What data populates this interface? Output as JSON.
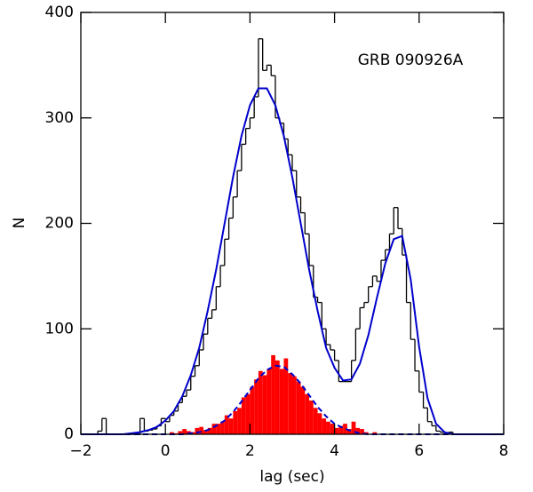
{
  "chart_data": {
    "type": "histogram",
    "annotation": "GRB 090926A",
    "xlabel": "lag (sec)",
    "ylabel": "N",
    "xlim": [
      -2,
      8
    ],
    "ylim": [
      0,
      400
    ],
    "xticks": [
      {
        "value": -2,
        "label": "−2"
      },
      0,
      2,
      4,
      6,
      8
    ],
    "yticks": [
      0,
      100,
      200,
      300,
      400
    ],
    "bins": [
      -2,
      -1.9,
      -1.8,
      -1.7,
      -1.6,
      -1.5,
      -1.4,
      -1.3,
      -1.2,
      -1.1,
      -1,
      -0.9,
      -0.8,
      -0.7,
      -0.6,
      -0.5,
      -0.4,
      -0.3,
      -0.2,
      -0.1,
      0,
      0.1,
      0.2,
      0.3,
      0.4,
      0.5,
      0.6,
      0.7,
      0.8,
      0.9,
      1,
      1.1,
      1.2,
      1.3,
      1.4,
      1.5,
      1.6,
      1.7,
      1.8,
      1.9,
      2,
      2.1,
      2.2,
      2.3,
      2.4,
      2.5,
      2.6,
      2.7,
      2.8,
      2.9,
      3,
      3.1,
      3.2,
      3.3,
      3.4,
      3.5,
      3.6,
      3.7,
      3.8,
      3.9,
      4,
      4.1,
      4.2,
      4.3,
      4.4,
      4.5,
      4.6,
      4.7,
      4.8,
      4.9,
      5,
      5.1,
      5.2,
      5.3,
      5.4,
      5.5,
      5.6,
      5.7,
      5.8,
      5.9,
      6,
      6.1,
      6.2,
      6.3,
      6.4,
      6.5,
      6.6,
      6.7,
      6.8,
      6.9,
      7,
      7.1,
      7.2,
      7.3,
      7.4,
      7.5,
      7.6,
      7.7,
      7.8,
      7.9,
      8
    ],
    "series": [
      {
        "color": "#ff0000",
        "style": "filled",
        "values": [
          0,
          0,
          0,
          0,
          0,
          0,
          0,
          0,
          0,
          0,
          0,
          0,
          0,
          0,
          0,
          0,
          0,
          0,
          0,
          0,
          0,
          2,
          1,
          3,
          5,
          3,
          2,
          6,
          7,
          4,
          6,
          10,
          10,
          12,
          18,
          15,
          22,
          25,
          35,
          38,
          45,
          52,
          60,
          56,
          62,
          75,
          70,
          62,
          72,
          58,
          55,
          50,
          45,
          38,
          32,
          25,
          20,
          15,
          12,
          10,
          6,
          8,
          10,
          5,
          12,
          6,
          5,
          2,
          0,
          2,
          0,
          0,
          0,
          0,
          0,
          0,
          0,
          0,
          0,
          0,
          0,
          0,
          0,
          0,
          0,
          0,
          0,
          0,
          0,
          0,
          0,
          0,
          0,
          0,
          0,
          0,
          0,
          0,
          0,
          0
        ]
      },
      {
        "color": "#000000",
        "style": "step",
        "values": [
          0,
          0,
          0,
          0,
          3,
          15,
          0,
          0,
          0,
          0,
          0,
          0,
          0,
          0,
          15,
          3,
          4,
          5,
          8,
          15,
          12,
          18,
          22,
          30,
          36,
          42,
          55,
          65,
          80,
          95,
          110,
          118,
          140,
          160,
          185,
          205,
          225,
          250,
          275,
          290,
          300,
          320,
          375,
          345,
          350,
          340,
          300,
          295,
          280,
          265,
          250,
          225,
          210,
          190,
          160,
          130,
          125,
          100,
          85,
          80,
          70,
          50,
          50,
          50,
          70,
          100,
          120,
          125,
          140,
          150,
          145,
          165,
          175,
          190,
          215,
          195,
          170,
          125,
          90,
          60,
          40,
          25,
          12,
          8,
          3,
          2,
          0,
          2,
          0,
          0,
          0,
          0,
          0,
          0,
          0,
          0,
          0,
          0,
          0,
          0
        ]
      }
    ],
    "curve_x": [
      -2,
      -1.8,
      -1.6,
      -1.4,
      -1.2,
      -1,
      -0.8,
      -0.6,
      -0.4,
      -0.2,
      0,
      0.2,
      0.4,
      0.6,
      0.8,
      1,
      1.2,
      1.4,
      1.6,
      1.8,
      2,
      2.2,
      2.4,
      2.6,
      2.8,
      3,
      3.2,
      3.4,
      3.6,
      3.8,
      4,
      4.2,
      4.4,
      4.6,
      4.8,
      5,
      5.2,
      5.4,
      5.6,
      5.8,
      6,
      6.2,
      6.4,
      6.6,
      6.8,
      7,
      7.2,
      7.4,
      7.6,
      7.8,
      8
    ],
    "curves": [
      {
        "color": "#0000cc",
        "dashed": false,
        "values": [
          0,
          0,
          0,
          0,
          0,
          0,
          1,
          2,
          4,
          7,
          13,
          22,
          36,
          56,
          82,
          117,
          156,
          200,
          244,
          283,
          312,
          328,
          328,
          312,
          283,
          244,
          200,
          156,
          117,
          82,
          63,
          51,
          52,
          67,
          94,
          129,
          162,
          185,
          188,
          147,
          83,
          34,
          10,
          2,
          0,
          0,
          0,
          0,
          0,
          0,
          0
        ]
      },
      {
        "color": "#0000cc",
        "dashed": true,
        "values": [
          0,
          0,
          0,
          0,
          0,
          0,
          0,
          0,
          0,
          0,
          0,
          0,
          0,
          1,
          2,
          4,
          8,
          13,
          21,
          31,
          42,
          53,
          61,
          65,
          64,
          57,
          48,
          37,
          26,
          17,
          10,
          6,
          3,
          1,
          0,
          0,
          0,
          0,
          0,
          0,
          0,
          0,
          0,
          0,
          0,
          0,
          0,
          0,
          0,
          0,
          0
        ]
      }
    ]
  }
}
